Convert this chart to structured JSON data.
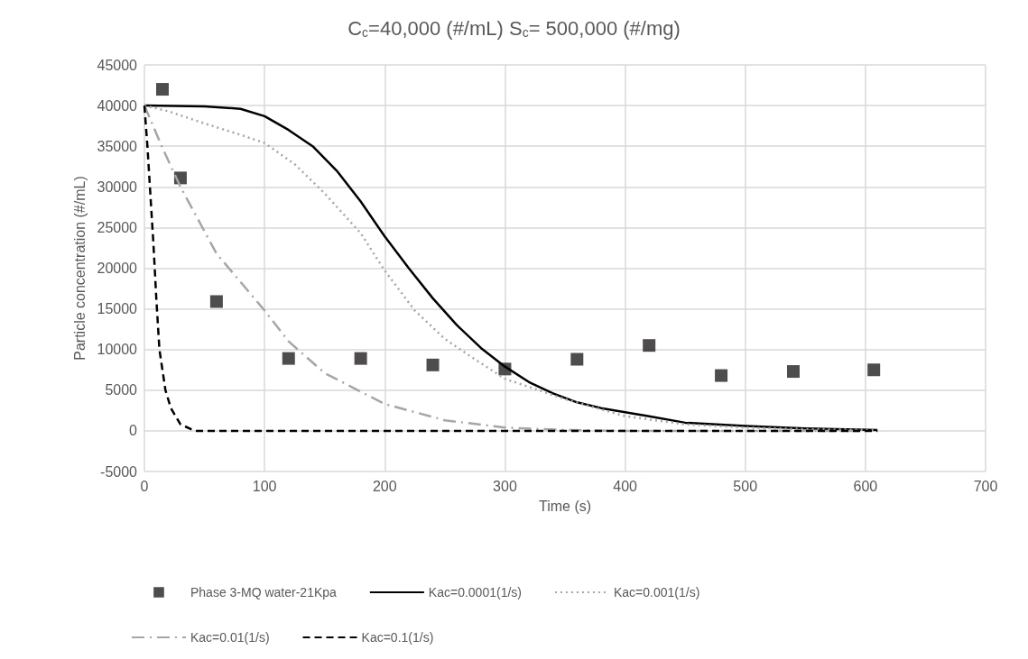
{
  "chart_data": {
    "type": "line",
    "title": "C$_{c}$=40,000 (#/mL) S$_{c}$= 500,000 (#/mg)",
    "xlabel": "Time (s)",
    "ylabel": "Particle concentration (#/mL)",
    "xlim": [
      0,
      700
    ],
    "xticks": [
      0,
      100,
      200,
      300,
      400,
      500,
      600,
      700
    ],
    "ylim": [
      -5000,
      45000
    ],
    "yticks": [
      -5000,
      0,
      5000,
      10000,
      15000,
      20000,
      25000,
      30000,
      35000,
      40000,
      45000
    ],
    "grid": true,
    "legend": "bottom",
    "series": [
      {
        "name": "Phase 3-MQ water-21Kpa",
        "type": "scatter",
        "marker": "square",
        "color": "#231f20",
        "x": [
          15,
          30,
          60,
          120,
          180,
          240,
          300,
          360,
          420,
          480,
          540,
          607
        ],
        "values": [
          42000,
          31100,
          15900,
          8900,
          8900,
          8100,
          7600,
          8800,
          10500,
          6800,
          7300,
          7500
        ]
      },
      {
        "name": "Kac=0.0001(1/s)",
        "marker": "none",
        "line_style": "solid",
        "color": "#000000",
        "x": [
          0,
          50,
          80,
          100,
          120,
          140,
          160,
          180,
          200,
          220,
          240,
          260,
          280,
          300,
          320,
          340,
          360,
          380,
          400,
          420,
          450,
          500,
          550,
          610
        ],
        "values": [
          40000,
          39900,
          39600,
          38700,
          37000,
          35000,
          32000,
          28200,
          23900,
          20000,
          16300,
          13000,
          10200,
          7900,
          6000,
          4600,
          3500,
          2800,
          2300,
          1800,
          1000,
          600,
          300,
          100
        ]
      },
      {
        "name": "Kac=0.001(1/s)",
        "marker": "none",
        "line_style": "dotted",
        "color": "#a6a6a6",
        "x": [
          0,
          20,
          50,
          80,
          100,
          125,
          150,
          180,
          200,
          225,
          250,
          275,
          300,
          350,
          400,
          450,
          500,
          550,
          610
        ],
        "values": [
          40000,
          39300,
          37800,
          36400,
          35400,
          32800,
          29200,
          24300,
          19700,
          14800,
          11300,
          8800,
          6400,
          3900,
          1800,
          800,
          400,
          200,
          100
        ]
      },
      {
        "name": "Kac=0.01(1/s)",
        "marker": "none",
        "line_style": "dashdot",
        "color": "#a6a6a6",
        "x": [
          0,
          15,
          30,
          60,
          100,
          120,
          150,
          200,
          250,
          300,
          350,
          400,
          500,
          600
        ],
        "values": [
          40000,
          34800,
          30000,
          21800,
          14800,
          11000,
          7100,
          3300,
          1300,
          400,
          100,
          0,
          0,
          0
        ]
      },
      {
        "name": "Kac=0.1(1/s)",
        "marker": "none",
        "line_style": "dashed",
        "color": "#000000",
        "x": [
          0,
          2.5,
          5,
          7.5,
          10,
          12.5,
          17.5,
          22,
          30,
          42,
          610
        ],
        "values": [
          40000,
          35000,
          29000,
          23000,
          16000,
          10000,
          5000,
          2800,
          800,
          0,
          0
        ]
      }
    ]
  }
}
